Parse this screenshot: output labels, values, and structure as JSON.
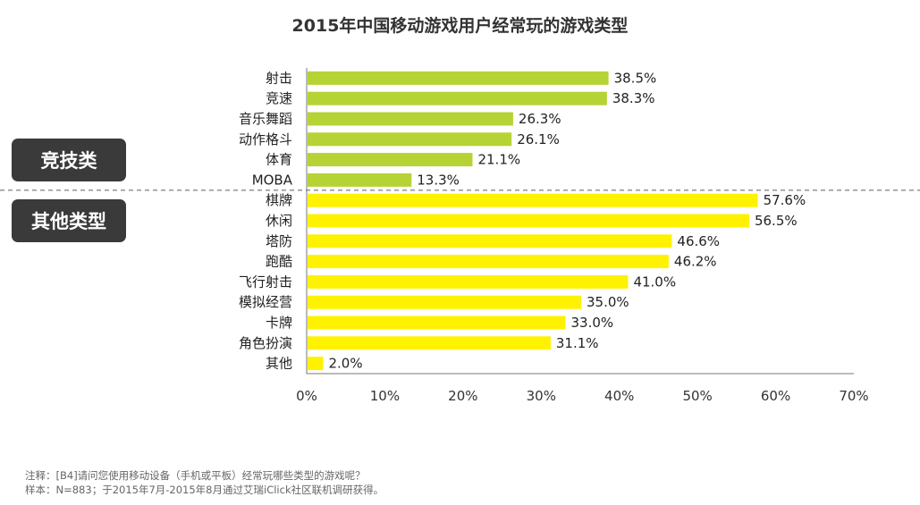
{
  "chart_data": {
    "type": "bar",
    "orientation": "horizontal",
    "title": "2015年中国移动游戏用户经常玩的游戏类型",
    "categories": [
      "射击",
      "竞速",
      "音乐舞蹈",
      "动作格斗",
      "体育",
      "MOBA",
      "棋牌",
      "休闲",
      "塔防",
      "跑酷",
      "飞行射击",
      "模拟经营",
      "卡牌",
      "角色扮演",
      "其他"
    ],
    "values": [
      38.5,
      38.3,
      26.3,
      26.1,
      21.1,
      13.3,
      57.6,
      56.5,
      46.6,
      46.2,
      41.0,
      35.0,
      33.0,
      31.1,
      2.0
    ],
    "value_labels": [
      "38.5%",
      "38.3%",
      "26.3%",
      "26.1%",
      "21.1%",
      "13.3%",
      "57.6%",
      "56.5%",
      "46.6%",
      "46.2%",
      "41.0%",
      "35.0%",
      "33.0%",
      "31.1%",
      "2.0%"
    ],
    "groups": [
      {
        "label": "竞技类",
        "start": 0,
        "end": 5,
        "color": "#b5d334"
      },
      {
        "label": "其他类型",
        "start": 6,
        "end": 14,
        "color": "#fff200"
      }
    ],
    "xlim": [
      0,
      70
    ],
    "xticks": [
      "0%",
      "10%",
      "20%",
      "30%",
      "40%",
      "50%",
      "60%",
      "70%"
    ],
    "grid": false
  },
  "notes": {
    "line1": "注释：[B4]请问您使用移动设备（手机或平板）经常玩哪些类型的游戏呢？",
    "line2": "样本：N=883；于2015年7月-2015年8月通过艾瑞iClick社区联机调研获得。"
  }
}
